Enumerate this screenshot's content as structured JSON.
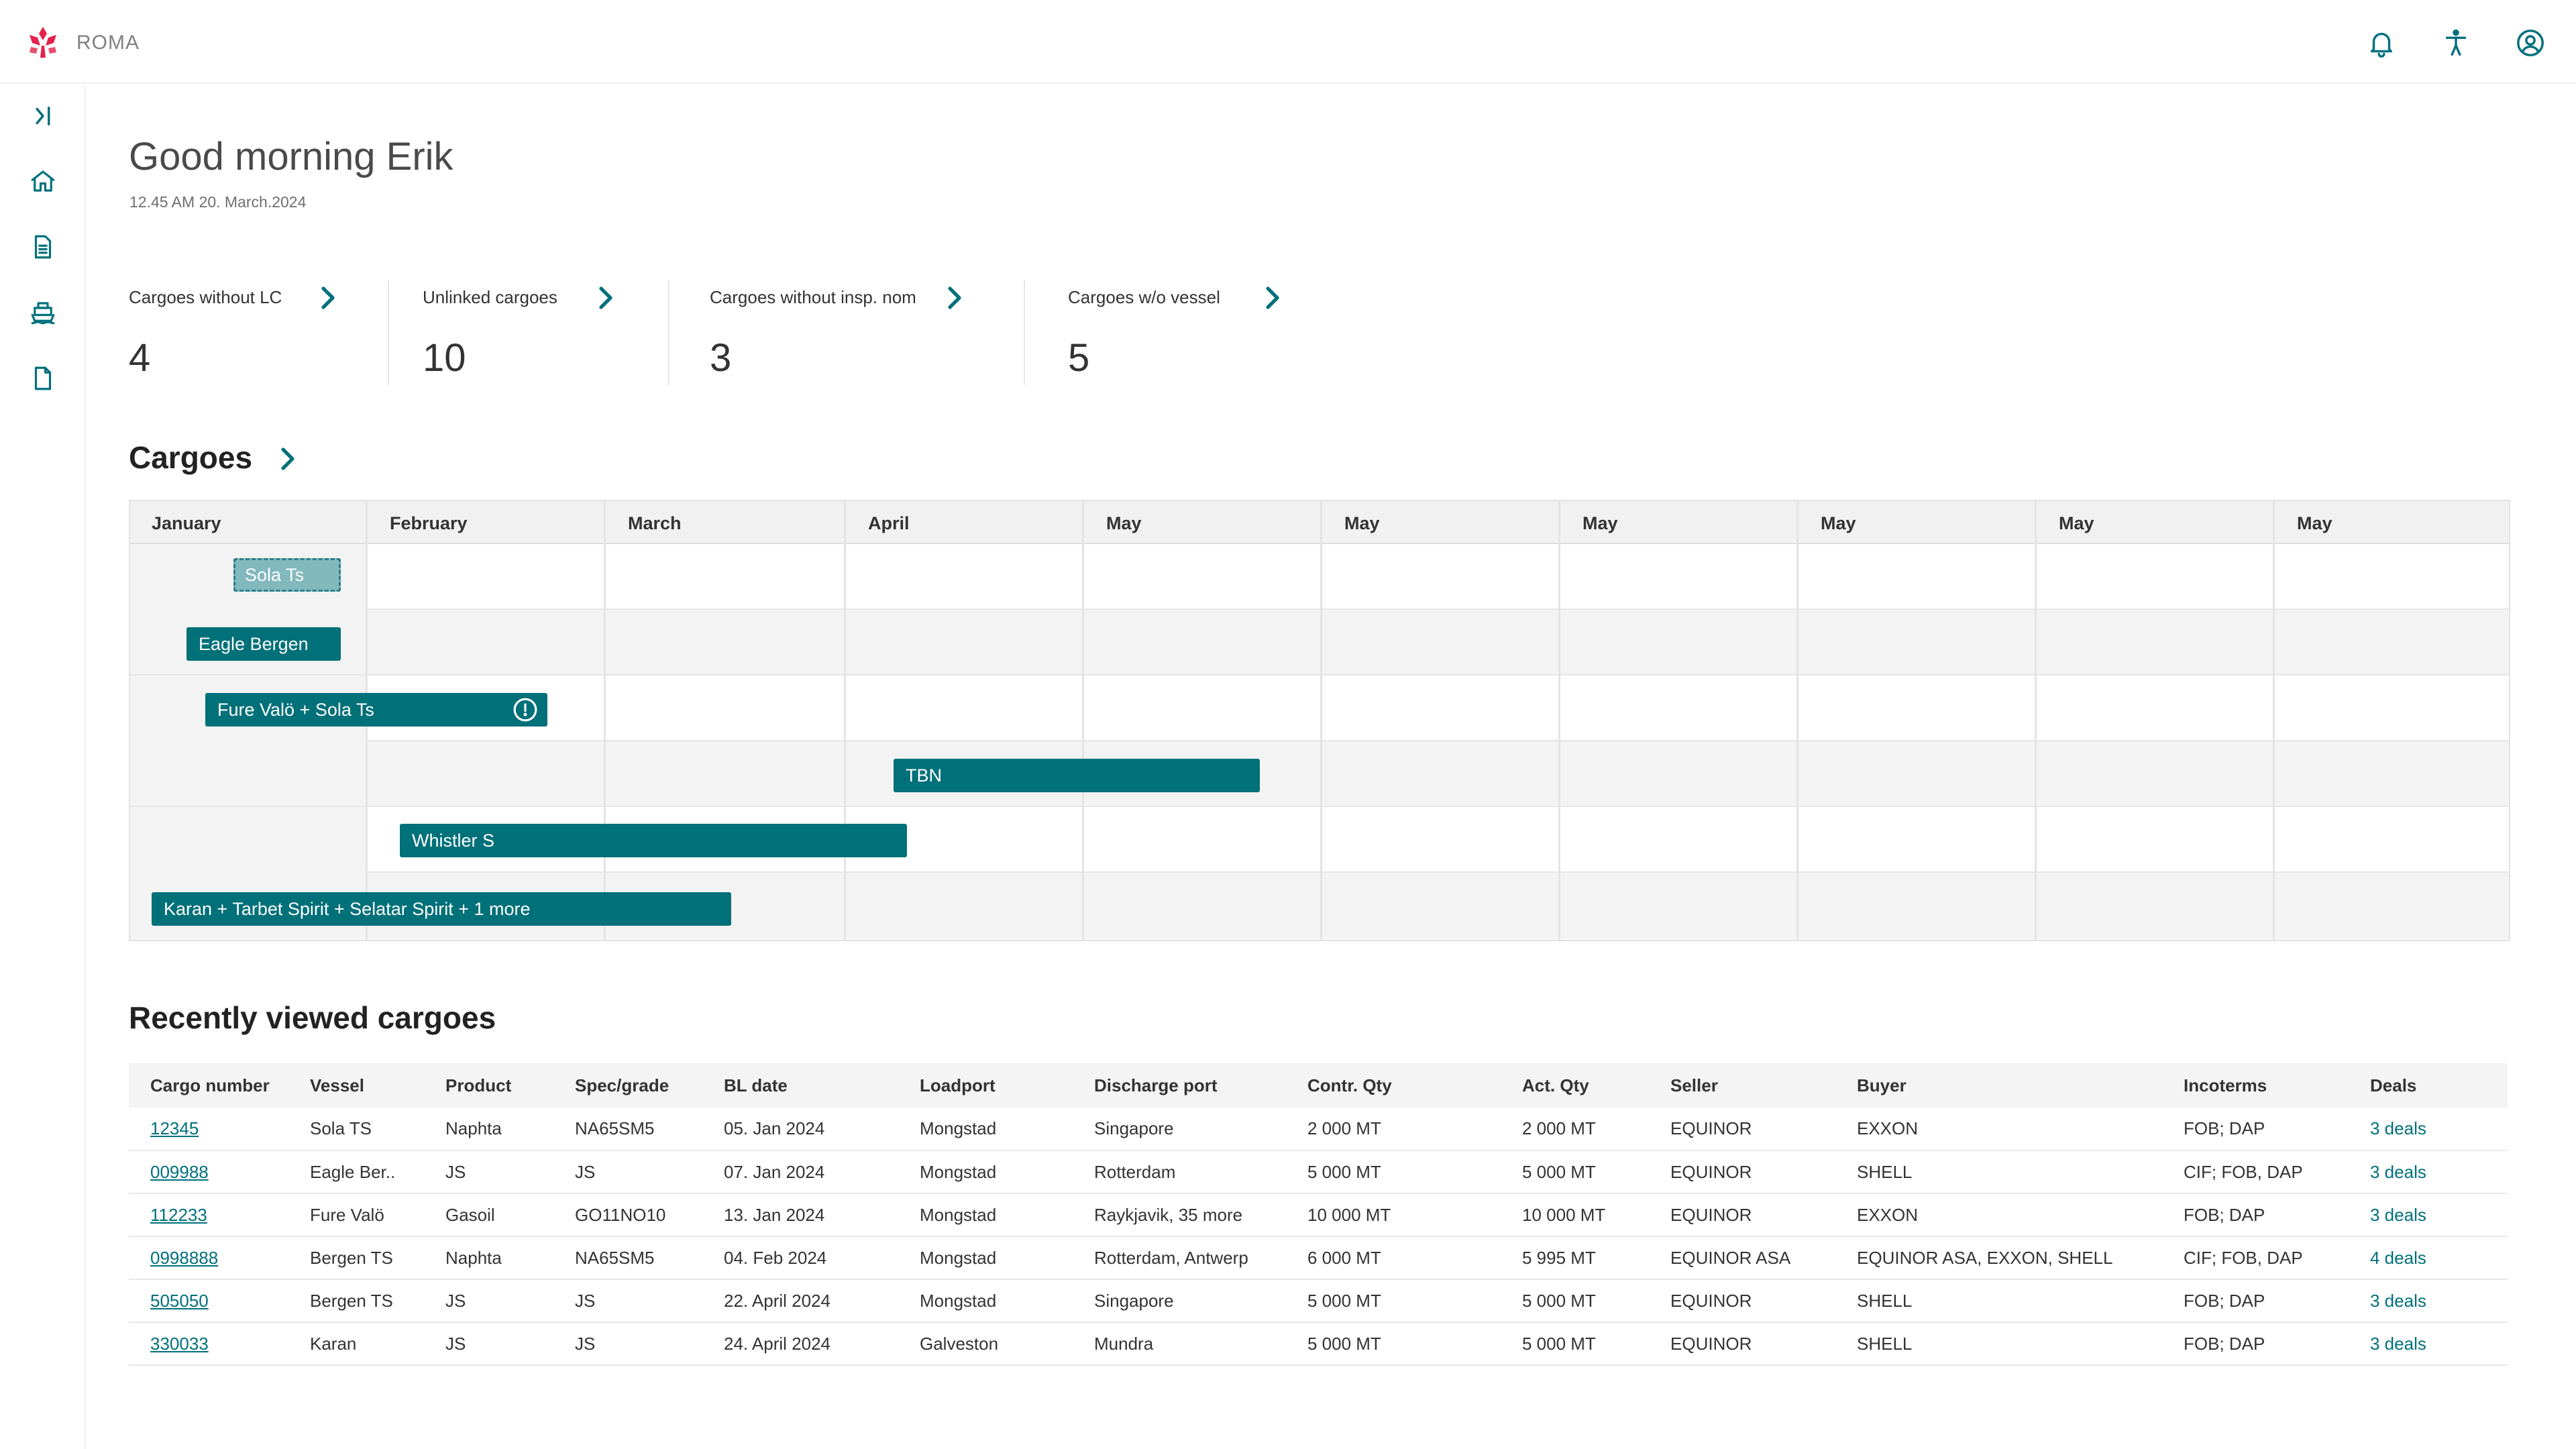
{
  "app": {
    "name": "ROMA",
    "brand_color": "#e3234b",
    "accent": "#007079"
  },
  "header": {
    "icons": [
      "bell-icon",
      "accessibility-icon",
      "account-icon"
    ]
  },
  "sidebar": {
    "icons": [
      "collapse-icon",
      "home-icon",
      "document-icon",
      "ship-icon",
      "file-icon"
    ]
  },
  "greeting": {
    "title": "Good morning Erik",
    "datetime": "12.45 AM 20. March.2024"
  },
  "kpis": [
    {
      "label": "Cargoes without LC",
      "value": "4"
    },
    {
      "label": "Unlinked cargoes",
      "value": "10"
    },
    {
      "label": "Cargoes without insp. nom",
      "value": "3"
    },
    {
      "label": "Cargoes w/o vessel",
      "value": "5"
    }
  ],
  "cargoes": {
    "title": "Cargoes",
    "months": [
      "January",
      "February",
      "March",
      "April",
      "May",
      "May",
      "May",
      "May",
      "May",
      "May"
    ],
    "bars": [
      {
        "label": "Sola Ts",
        "style": "dashed"
      },
      {
        "label": "Eagle Bergen",
        "style": "solid"
      },
      {
        "label": "Fure Valö + Sola Ts",
        "style": "solid",
        "warning": true
      },
      {
        "label": "TBN",
        "style": "solid"
      },
      {
        "label": "Whistler S",
        "style": "solid"
      },
      {
        "label": "Karan + Tarbet Spirit + Selatar Spirit + 1 more",
        "style": "solid"
      }
    ]
  },
  "recent": {
    "title": "Recently viewed cargoes",
    "columns": [
      "Cargo number",
      "Vessel",
      "Product",
      "Spec/grade",
      "BL date",
      "Loadport",
      "Discharge port",
      "Contr. Qty",
      "Act. Qty",
      "Seller",
      "Buyer",
      "Incoterms",
      "Deals"
    ],
    "rows": [
      [
        "12345",
        "Sola TS",
        "Naphta",
        "NA65SM5",
        "05. Jan 2024",
        "Mongstad",
        "Singapore",
        "2 000 MT",
        "2 000 MT",
        "EQUINOR",
        "EXXON",
        "FOB; DAP",
        "3 deals"
      ],
      [
        "009988",
        "Eagle Ber..",
        "JS",
        "JS",
        "07. Jan 2024",
        "Mongstad",
        "Rotterdam",
        "5 000 MT",
        "5 000 MT",
        "EQUINOR",
        "SHELL",
        "CIF; FOB, DAP",
        "3 deals"
      ],
      [
        "112233",
        "Fure Valö",
        "Gasoil",
        "GO11NO10",
        "13. Jan 2024",
        "Mongstad",
        "Raykjavik, 35 more",
        "10 000 MT",
        "10 000 MT",
        "EQUINOR",
        "EXXON",
        "FOB; DAP",
        "3 deals"
      ],
      [
        "0998888",
        "Bergen TS",
        "Naphta",
        "NA65SM5",
        "04. Feb 2024",
        "Mongstad",
        "Rotterdam, Antwerp",
        "6 000 MT",
        "5 995 MT",
        "EQUINOR ASA",
        "EQUINOR ASA, EXXON, SHELL",
        "CIF; FOB, DAP",
        "4 deals"
      ],
      [
        "505050",
        "Bergen TS",
        "JS",
        "JS",
        "22. April 2024",
        "Mongstad",
        "Singapore",
        "5 000 MT",
        "5 000 MT",
        "EQUINOR",
        "SHELL",
        "FOB; DAP",
        "3 deals"
      ],
      [
        "330033",
        "Karan",
        "JS",
        "JS",
        "24. April 2024",
        "Galveston",
        "Mundra",
        "5 000 MT",
        "5 000 MT",
        "EQUINOR",
        "SHELL",
        "FOB; DAP",
        "3 deals"
      ]
    ]
  }
}
